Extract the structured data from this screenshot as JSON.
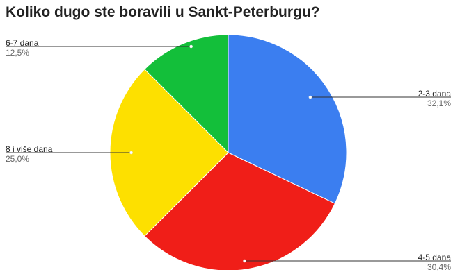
{
  "chart_data": {
    "type": "pie",
    "title": "Koliko dugo ste boravili u Sankt-Peterburgu?",
    "slices": [
      {
        "label": "2-3 dana",
        "value": 32.1,
        "value_label": "32,1%",
        "color": "#3b7ef0"
      },
      {
        "label": "4-5 dana",
        "value": 30.4,
        "value_label": "30,4%",
        "color": "#f01e18"
      },
      {
        "label": "8 i više dana",
        "value": 25.0,
        "value_label": "25,0%",
        "color": "#fde000"
      },
      {
        "label": "6-7 dana",
        "value": 12.5,
        "value_label": "12,5%",
        "color": "#13bf3a"
      }
    ],
    "start_angle_deg": 0,
    "direction": "clockwise",
    "legend": "none"
  }
}
